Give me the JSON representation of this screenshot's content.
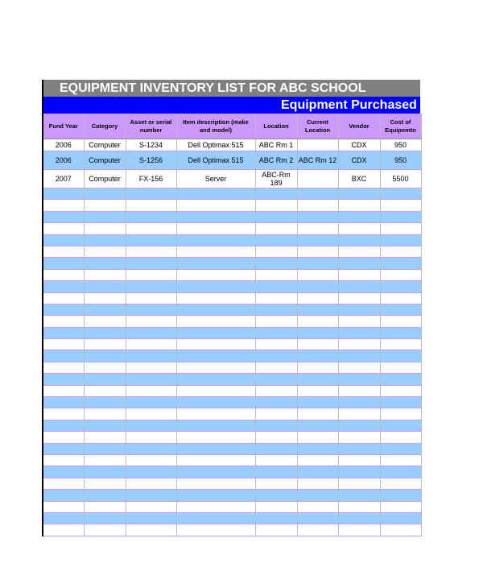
{
  "title": "EQUIPMENT INVENTORY LIST FOR ABC SCHOOL",
  "subtitle": "Equipment Purchased w",
  "columns": [
    "Fund Year",
    "Category",
    "Asset or serial number",
    "Item description (make and model)",
    "Location",
    "Current Location",
    "Vendor",
    "Cost of Equipemtn"
  ],
  "rows": [
    [
      "2006",
      "Computer",
      "S-1234",
      "Dell Optimax 515",
      "ABC Rm 1",
      "",
      "CDX",
      "950"
    ],
    [
      "2006",
      "Computer",
      "S-1256",
      "Dell Optimax 515",
      "ABC Rm 2",
      "ABC Rm 12",
      "CDX",
      "950"
    ],
    [
      "2007",
      "Computer",
      "FX-156",
      "Server",
      "ABC-Rm 189",
      "",
      "BXC",
      "5500"
    ]
  ],
  "colors": {
    "title_bg": "#808080",
    "subtitle_bg": "#0000ff",
    "header_bg": "#cc99ff",
    "band": "#99ccff"
  }
}
